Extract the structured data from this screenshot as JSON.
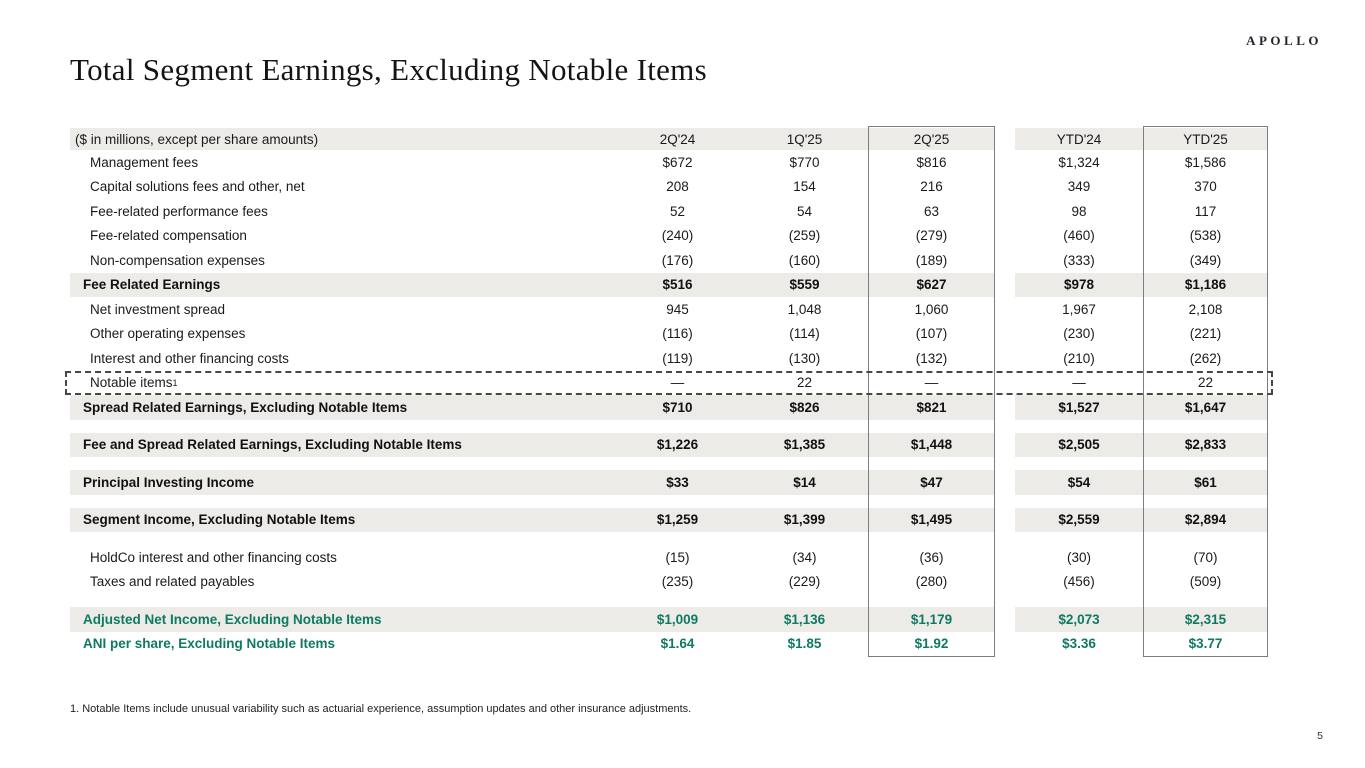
{
  "logo": "APOLLO",
  "page_title": "Total Segment Earnings, Excluding Notable Items",
  "footnote": "1. Notable Items include unusual variability such as actuarial experience, assumption updates and other insurance adjustments.",
  "page_number": "5",
  "colors": {
    "accent_green": "#0e7a62",
    "row_highlight": "#ecebe8",
    "column_box_border": "#7d7d7d"
  },
  "table": {
    "header_label": "($ in millions, except per share amounts)",
    "columns": [
      "2Q'24",
      "1Q'25",
      "2Q'25",
      "YTD'24",
      "YTD'25"
    ],
    "highlighted_columns": [
      "2Q'25",
      "YTD'25"
    ],
    "rows": [
      {
        "label": "Management fees",
        "style": "detail",
        "values": [
          "$672",
          "$770",
          "$816",
          "$1,324",
          "$1,586"
        ]
      },
      {
        "label": "Capital solutions fees and other, net",
        "style": "detail",
        "values": [
          "208",
          "154",
          "216",
          "349",
          "370"
        ]
      },
      {
        "label": "Fee-related performance fees",
        "style": "detail",
        "values": [
          "52",
          "54",
          "63",
          "98",
          "117"
        ]
      },
      {
        "label": "Fee-related compensation",
        "style": "detail",
        "values": [
          "(240)",
          "(259)",
          "(279)",
          "(460)",
          "(538)"
        ]
      },
      {
        "label": "Non-compensation expenses",
        "style": "detail",
        "values": [
          "(176)",
          "(160)",
          "(189)",
          "(333)",
          "(349)"
        ]
      },
      {
        "label": "Fee Related Earnings",
        "style": "total",
        "values": [
          "$516",
          "$559",
          "$627",
          "$978",
          "$1,186"
        ]
      },
      {
        "label": "Net investment spread",
        "style": "detail",
        "values": [
          "945",
          "1,048",
          "1,060",
          "1,967",
          "2,108"
        ]
      },
      {
        "label": "Other operating expenses",
        "style": "detail",
        "values": [
          "(116)",
          "(114)",
          "(107)",
          "(230)",
          "(221)"
        ]
      },
      {
        "label": "Interest and other financing costs",
        "style": "detail",
        "values": [
          "(119)",
          "(130)",
          "(132)",
          "(210)",
          "(262)"
        ]
      },
      {
        "label": "Notable items",
        "sup": "1",
        "style": "notable",
        "values": [
          "—",
          "22",
          "—",
          "—",
          "22"
        ]
      },
      {
        "label": "Spread Related Earnings, Excluding Notable Items",
        "style": "total",
        "values": [
          "$710",
          "$826",
          "$821",
          "$1,527",
          "$1,647"
        ]
      },
      {
        "style": "spacer"
      },
      {
        "label": "Fee and Spread Related Earnings, Excluding Notable Items",
        "style": "total",
        "values": [
          "$1,226",
          "$1,385",
          "$1,448",
          "$2,505",
          "$2,833"
        ]
      },
      {
        "style": "spacer"
      },
      {
        "label": "Principal Investing Income",
        "style": "total",
        "values": [
          "$33",
          "$14",
          "$47",
          "$54",
          "$61"
        ]
      },
      {
        "style": "spacer"
      },
      {
        "label": "Segment Income, Excluding Notable Items",
        "style": "total",
        "values": [
          "$1,259",
          "$1,399",
          "$1,495",
          "$2,559",
          "$2,894"
        ]
      },
      {
        "style": "spacer"
      },
      {
        "label": "HoldCo interest and other financing costs",
        "style": "detail",
        "values": [
          "(15)",
          "(34)",
          "(36)",
          "(30)",
          "(70)"
        ]
      },
      {
        "label": "Taxes and related payables",
        "style": "detail",
        "values": [
          "(235)",
          "(229)",
          "(280)",
          "(456)",
          "(509)"
        ]
      },
      {
        "style": "spacer"
      },
      {
        "label": "Adjusted Net Income, Excluding Notable Items",
        "style": "total-green",
        "values": [
          "$1,009",
          "$1,136",
          "$1,179",
          "$2,073",
          "$2,315"
        ]
      },
      {
        "label": "ANI per share, Excluding Notable Items",
        "style": "pershare-green",
        "values": [
          "$1.64",
          "$1.85",
          "$1.92",
          "$3.36",
          "$3.77"
        ]
      }
    ]
  }
}
